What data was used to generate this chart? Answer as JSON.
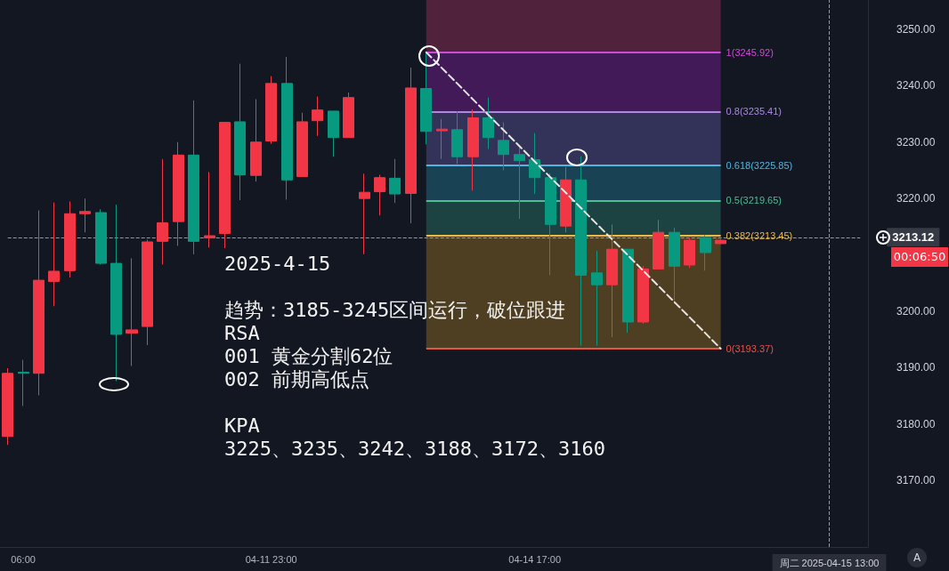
{
  "chart_data": {
    "type": "candlestick",
    "categories": [
      null,
      "06:00",
      null,
      null,
      null,
      null,
      null,
      null,
      null,
      null,
      null,
      null,
      null,
      null,
      null,
      null,
      null,
      "04-11 23:00",
      null,
      null,
      null,
      null,
      null,
      null,
      null,
      null,
      null,
      null,
      null,
      null,
      null,
      null,
      null,
      null,
      "04-14 17:00",
      null,
      null,
      null,
      null,
      null,
      null,
      null,
      null,
      null,
      null,
      null,
      null,
      null,
      null,
      null,
      null,
      null,
      null,
      "周二 2025-04-15 13:00",
      null,
      null
    ],
    "series": [
      {
        "type": "candlestick",
        "ohlc": [
          [
            3177.8,
            3189.9,
            3176.3,
            3189.0
          ],
          [
            3189.2,
            3191.4,
            3183.2,
            3189.0
          ],
          [
            3189.0,
            3217.9,
            3185.1,
            3205.5
          ],
          [
            3205.3,
            3219.3,
            3200.9,
            3207.1
          ],
          [
            3207.2,
            3219.5,
            3206.0,
            3217.3
          ],
          [
            3217.3,
            3220.0,
            3214.0,
            3217.7
          ],
          [
            3217.5,
            3218.1,
            3208.3,
            3208.5
          ],
          [
            3208.5,
            3218.9,
            3187.6,
            3195.9
          ],
          [
            3196.1,
            3209.4,
            3190.3,
            3196.7
          ],
          [
            3197.3,
            3212.7,
            3194.0,
            3212.3
          ],
          [
            3212.4,
            3227.0,
            3208.3,
            3215.7
          ],
          [
            3215.9,
            3230.0,
            3211.6,
            3227.7
          ],
          [
            3227.7,
            3237.4,
            3210.1,
            3212.4
          ],
          [
            3213.0,
            3224.7,
            3211.3,
            3213.4
          ],
          [
            3213.8,
            3233.6,
            3211.2,
            3233.5
          ],
          [
            3233.6,
            3243.9,
            3219.7,
            3224.2
          ],
          [
            3224.1,
            3237.6,
            3223.0,
            3230.0
          ],
          [
            3230.2,
            3241.7,
            3229.7,
            3240.4
          ],
          [
            3240.4,
            3245.1,
            3219.8,
            3223.3
          ],
          [
            3223.9,
            3235.2,
            3223.9,
            3233.6
          ],
          [
            3233.8,
            3238.1,
            3231.1,
            3235.7
          ],
          [
            3235.5,
            3235.5,
            3227.4,
            3230.8
          ],
          [
            3230.8,
            3238.8,
            3230.8,
            3237.9
          ],
          [
            3220.0,
            3224.4,
            3210.1,
            3221.1
          ],
          [
            3221.2,
            3224.2,
            3217.0,
            3223.7
          ],
          [
            3223.6,
            3227.0,
            3219.2,
            3220.8
          ],
          [
            3220.9,
            3243.2,
            3215.6,
            3239.6
          ],
          [
            3239.5,
            3245.92,
            3229.6,
            3231.9
          ],
          [
            3232.0,
            3234.1,
            3227.0,
            3232.3
          ],
          [
            3232.2,
            3235.5,
            3226.1,
            3227.4
          ],
          [
            3227.4,
            3235.8,
            3221.4,
            3234.3
          ],
          [
            3234.3,
            3237.9,
            3228.8,
            3230.8
          ],
          [
            3230.3,
            3233.5,
            3225.0,
            3227.8
          ],
          [
            3227.8,
            3229.1,
            3216.4,
            3226.7
          ],
          [
            3226.9,
            3231.6,
            3220.8,
            3223.7
          ],
          [
            3223.7,
            3224.5,
            3206.4,
            3215.4
          ],
          [
            3215.1,
            3225.6,
            3214.0,
            3223.3
          ],
          [
            3223.3,
            3227.5,
            3193.9,
            3206.4
          ],
          [
            3206.8,
            3210.7,
            3193.9,
            3204.7
          ],
          [
            3204.7,
            3215.4,
            3195.4,
            3211.0
          ],
          [
            3211.0,
            3211.0,
            3196.2,
            3198.1
          ],
          [
            3198.1,
            3208.0,
            3197.8,
            3207.5
          ],
          [
            3207.5,
            3216.2,
            3207.5,
            3214.0
          ],
          [
            3214.0,
            3214.8,
            3201.3,
            3208.0
          ],
          [
            3208.2,
            3213.1,
            3207.7,
            3212.6
          ],
          [
            3213.1,
            3213.5,
            3207.2,
            3210.4
          ],
          [
            3212.0,
            3212.8,
            3211.9,
            3212.6
          ],
          null,
          null,
          null,
          null,
          null,
          null,
          null,
          null,
          null
        ],
        "colors": [
          "#f23645",
          "#089981",
          "#f23645",
          "#f23645",
          "#f23645",
          "#f23645",
          "#089981",
          "#089981",
          "#f23645",
          "#f23645",
          "#f23645",
          "#f23645",
          "#089981",
          "#f23645",
          "#f23645",
          "#089981",
          "#f23645",
          "#f23645",
          "#089981",
          "#f23645",
          "#f23645",
          "#089981",
          "#f23645",
          "#f23645",
          "#f23645",
          "#089981",
          "#f23645",
          "#089981",
          "#f23645",
          "#089981",
          "#f23645",
          "#089981",
          "#089981",
          "#089981",
          "#089981",
          "#089981",
          "#f23645",
          "#089981",
          "#089981",
          "#f23645",
          "#089981",
          "#f23645",
          "#f23645",
          "#089981",
          "#f23645",
          "#089981",
          "#f23645",
          null,
          null,
          null,
          null,
          null,
          null,
          null,
          null,
          null
        ]
      },
      {
        "type": "line",
        "color": "#e6e6e6",
        "line_style": "dashed",
        "values": [
          null,
          null,
          null,
          null,
          null,
          null,
          null,
          null,
          null,
          null,
          null,
          null,
          null,
          null,
          null,
          null,
          null,
          null,
          null,
          null,
          null,
          null,
          null,
          null,
          null,
          null,
          null,
          3245.92,
          null,
          null,
          null,
          null,
          null,
          null,
          null,
          null,
          null,
          null,
          null,
          null,
          null,
          null,
          null,
          null,
          null,
          null,
          3193.37,
          null,
          null,
          null,
          null,
          null,
          null,
          null,
          null,
          null
        ]
      }
    ],
    "ylim": [
      3158.2,
      3255.2
    ],
    "yticks": [
      {
        "value": 3170,
        "label": "3170.00"
      },
      {
        "value": 3180,
        "label": "3180.00"
      },
      {
        "value": 3190,
        "label": "3190.00"
      },
      {
        "value": 3200,
        "label": "3200.00"
      },
      {
        "value": 3220,
        "label": "3220.00"
      },
      {
        "value": 3230,
        "label": "3230.00"
      },
      {
        "value": 3240,
        "label": "3240.00"
      },
      {
        "value": 3250,
        "label": "3250.00"
      }
    ],
    "grid": false,
    "bands": [
      {
        "axis": "y",
        "from": 3245.92,
        "to": 3255.2,
        "color": "#5c2440"
      },
      {
        "axis": "y",
        "from": 3235.41,
        "to": 3245.92,
        "color": "#4a1b60"
      },
      {
        "axis": "y",
        "from": 3225.85,
        "to": 3235.41,
        "color": "#3a3763"
      },
      {
        "axis": "y",
        "from": 3219.65,
        "to": 3225.85,
        "color": "#1b4a5e"
      },
      {
        "axis": "y",
        "from": 3213.45,
        "to": 3219.65,
        "color": "#1e4a47"
      },
      {
        "axis": "y",
        "from": 3193.37,
        "to": 3213.45,
        "color": "#5a4622"
      }
    ],
    "ref_lines": [
      {
        "axis": "y",
        "value": 3245.92,
        "label": "1(3245.92)",
        "color": "#d04ad8"
      },
      {
        "axis": "y",
        "value": 3235.41,
        "label": "0.8(3235.41)",
        "color": "#a889e0"
      },
      {
        "axis": "y",
        "value": 3225.85,
        "label": "0.618(3225.85)",
        "color": "#4fb6e0"
      },
      {
        "axis": "y",
        "value": 3219.65,
        "label": "0.5(3219.65)",
        "color": "#4cbf93"
      },
      {
        "axis": "y",
        "value": 3213.45,
        "label": "0.382(3213.45)",
        "color": "#e8b84a"
      },
      {
        "axis": "y",
        "value": 3193.37,
        "label": "0(3193.37)",
        "color": "#e5534b"
      },
      {
        "axis": "y",
        "value": 3213.12,
        "label": "3213.12",
        "color": "#9598a1",
        "line_style": "dashed"
      },
      {
        "axis": "x",
        "value": "周二 2025-04-15 13:00",
        "color": "#9598a1",
        "line_style": "dashed"
      }
    ],
    "annotations": [
      "2025-4-15",
      "趋势：3185-3245区间运行，破位跟进",
      "RSA",
      "001 黄金分割62位",
      "002 前期高低点",
      "KPA",
      "3225、3235、3242、3188、3172、3160",
      "00:06:50",
      "A"
    ]
  }
}
